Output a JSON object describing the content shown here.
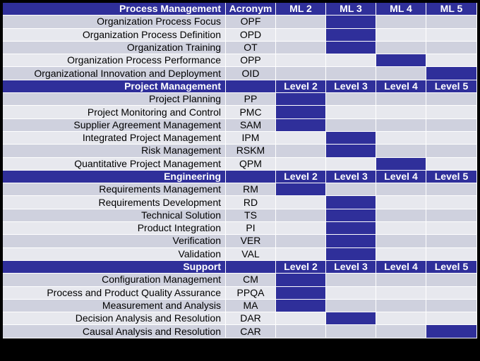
{
  "columns": [
    "ML 2",
    "ML 3",
    "ML 4",
    "ML 5"
  ],
  "colors": {
    "header": "#2f2f9a",
    "filled": "#2f2f9a",
    "row_dark": "#cfd1de",
    "row_light": "#e7e8ee"
  },
  "sections": [
    {
      "title": "Process Management",
      "acronym_header": "Acronym",
      "levels": [
        "ML 2",
        "ML 3",
        "ML 4",
        "ML 5"
      ],
      "rows": [
        {
          "name": "Organization Process Focus",
          "acronym": "OPF",
          "level": 3
        },
        {
          "name": "Organization Process Definition",
          "acronym": "OPD",
          "level": 3
        },
        {
          "name": "Organization Training",
          "acronym": "OT",
          "level": 3
        },
        {
          "name": "Organization Process Performance",
          "acronym": "OPP",
          "level": 4
        },
        {
          "name": "Organizational Innovation and Deployment",
          "acronym": "OID",
          "level": 5
        }
      ]
    },
    {
      "title": "Project Management",
      "acronym_header": "",
      "levels": [
        "Level 2",
        "Level 3",
        "Level 4",
        "Level 5"
      ],
      "rows": [
        {
          "name": "Project Planning",
          "acronym": "PP",
          "level": 2
        },
        {
          "name": "Project Monitoring and Control",
          "acronym": "PMC",
          "level": 2
        },
        {
          "name": "Supplier Agreement Management",
          "acronym": "SAM",
          "level": 2
        },
        {
          "name": "Integrated Project Management",
          "acronym": "IPM",
          "level": 3
        },
        {
          "name": "Risk Management",
          "acronym": "RSKM",
          "level": 3
        },
        {
          "name": "Quantitative Project Management",
          "acronym": "QPM",
          "level": 4
        }
      ]
    },
    {
      "title": "Engineering",
      "acronym_header": "",
      "levels": [
        "Level 2",
        "Level 3",
        "Level 4",
        "Level 5"
      ],
      "rows": [
        {
          "name": "Requirements Management",
          "acronym": "RM",
          "level": 2
        },
        {
          "name": "Requirements Development",
          "acronym": "RD",
          "level": 3
        },
        {
          "name": "Technical Solution",
          "acronym": "TS",
          "level": 3
        },
        {
          "name": "Product Integration",
          "acronym": "PI",
          "level": 3
        },
        {
          "name": "Verification",
          "acronym": "VER",
          "level": 3
        },
        {
          "name": "Validation",
          "acronym": "VAL",
          "level": 3
        }
      ]
    },
    {
      "title": "Support",
      "acronym_header": "",
      "levels": [
        "Level 2",
        "Level 3",
        "Level 4",
        "Level 5"
      ],
      "rows": [
        {
          "name": "Configuration Management",
          "acronym": "CM",
          "level": 2
        },
        {
          "name": "Process and Product Quality Assurance",
          "acronym": "PPQA",
          "level": 2
        },
        {
          "name": "Measurement and Analysis",
          "acronym": "MA",
          "level": 2
        },
        {
          "name": "Decision Analysis and Resolution",
          "acronym": "DAR",
          "level": 3
        },
        {
          "name": "Causal Analysis and Resolution",
          "acronym": "CAR",
          "level": 5
        }
      ]
    }
  ]
}
